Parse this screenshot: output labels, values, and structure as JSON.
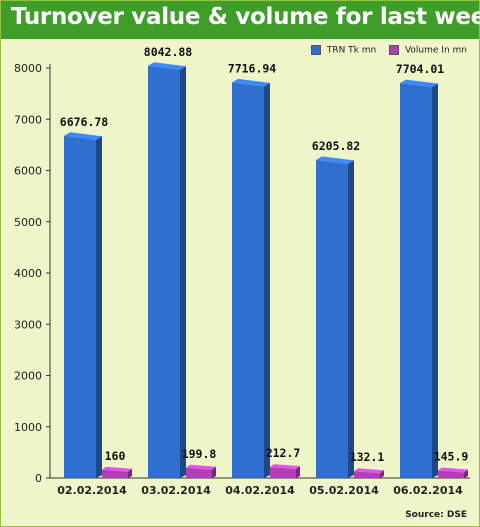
{
  "chart_data": {
    "type": "bar",
    "title": "Turnover value & volume for last week",
    "categories": [
      "02.02.2014",
      "03.02.2014",
      "04.02.2014",
      "05.02.2014",
      "06.02.2014"
    ],
    "series": [
      {
        "name": "TRN Tk mn",
        "values": [
          6676.78,
          8042.88,
          7716.94,
          6205.82,
          7704.01
        ],
        "labels": [
          "6676.78",
          "8042.88",
          "7716.94",
          "6205.82",
          "7704.01"
        ],
        "color": "#2f6fd0"
      },
      {
        "name": "Volume In mn",
        "values": [
          160,
          199.8,
          212.7,
          132.1,
          145.9
        ],
        "labels": [
          "160",
          "199.8",
          "212.7",
          "132.1",
          "145.9"
        ],
        "color": "#b23fb8"
      }
    ],
    "ylim": [
      0,
      8000
    ],
    "yticks": [
      0,
      1000,
      2000,
      3000,
      4000,
      5000,
      6000,
      7000,
      8000
    ],
    "xlabel": "",
    "ylabel": "",
    "grid": false,
    "legend": "top-right",
    "source": "Source: DSE"
  }
}
